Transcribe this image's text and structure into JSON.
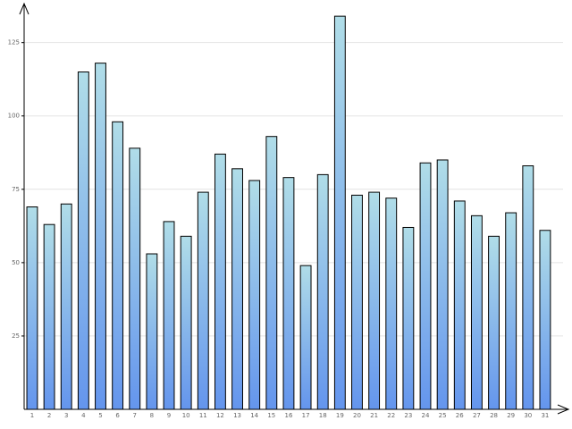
{
  "chart_data": {
    "type": "bar",
    "categories": [
      "1",
      "2",
      "3",
      "4",
      "5",
      "6",
      "7",
      "8",
      "9",
      "10",
      "11",
      "12",
      "13",
      "14",
      "15",
      "16",
      "17",
      "18",
      "19",
      "20",
      "21",
      "22",
      "23",
      "24",
      "25",
      "26",
      "27",
      "28",
      "29",
      "30",
      "31"
    ],
    "values": [
      69,
      63,
      70,
      115,
      118,
      98,
      89,
      53,
      64,
      59,
      74,
      87,
      82,
      78,
      93,
      79,
      49,
      80,
      134,
      73,
      74,
      72,
      62,
      84,
      85,
      71,
      66,
      59,
      67,
      83,
      61
    ],
    "color": "#6495ed",
    "ylim": [
      0,
      138
    ],
    "yticks": [
      25,
      50,
      75,
      100,
      125
    ],
    "grid": true
  }
}
